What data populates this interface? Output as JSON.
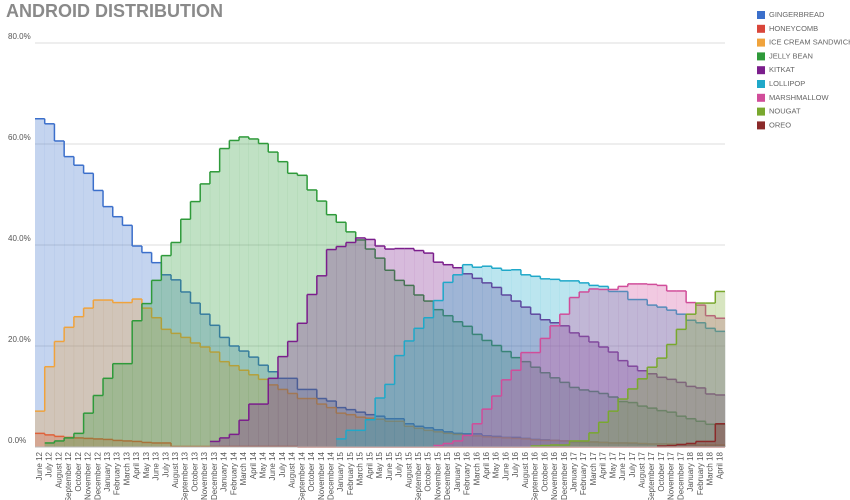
{
  "chart_data": {
    "type": "step-area",
    "title": "ANDROID DISTRIBUTION",
    "categories": [
      "June 12",
      "July 12",
      "August 12",
      "September 12",
      "October 12",
      "November 12",
      "December 12",
      "January 13",
      "February 13",
      "March 13",
      "April 13",
      "May 13",
      "June 13",
      "July 13",
      "August 13",
      "September 13",
      "October 13",
      "November 13",
      "December 13",
      "January 14",
      "February 14",
      "March 14",
      "April 14",
      "May 14",
      "June 14",
      "July 14",
      "August 14",
      "September 14",
      "October 14",
      "November 14",
      "December 14",
      "January 15",
      "February 15",
      "March 15",
      "April 15",
      "May 15",
      "June 15",
      "July 15",
      "August 15",
      "September 15",
      "October 15",
      "November 15",
      "December 15",
      "January 16",
      "February 16",
      "March 16",
      "April 16",
      "May 16",
      "June 16",
      "July 16",
      "August 16",
      "September 16",
      "October 16",
      "November 16",
      "December 16",
      "January 17",
      "February 17",
      "March 17",
      "April 17",
      "May 17",
      "June 17",
      "July 17",
      "August 17",
      "September 17",
      "October 17",
      "November 17",
      "December 17",
      "January 18",
      "February 18",
      "March 18",
      "April 18"
    ],
    "ylim": [
      0,
      80
    ],
    "yticks": [
      {
        "value": 0,
        "label": "0.0%"
      },
      {
        "value": 20,
        "label": "20.0%"
      },
      {
        "value": 40,
        "label": "40.0%"
      },
      {
        "value": 60,
        "label": "60.0%"
      },
      {
        "value": 80,
        "label": "80.0%"
      }
    ],
    "grid": true,
    "legend": "right",
    "series": [
      {
        "name": "GINGERBREAD",
        "color": "#3b6fcb",
        "values": [
          65,
          64,
          60.6,
          57.5,
          55.8,
          54.2,
          50.8,
          47.6,
          45.6,
          43.9,
          39.8,
          38.5,
          36.5,
          34.1,
          33.1,
          30.7,
          28.5,
          26.3,
          24.1,
          21.7,
          20.0,
          19.0,
          17.8,
          16.2,
          14.9,
          13.6,
          13.6,
          11.4,
          11.4,
          9.6,
          9.1,
          7.8,
          7.4,
          6.9,
          6.4,
          6.1,
          5.6,
          5.6,
          4.6,
          4.1,
          3.8,
          3.4,
          3.0,
          2.7,
          2.6,
          2.6,
          2.2,
          2.1,
          1.9,
          1.9,
          1.7,
          1.5,
          1.4,
          1.3,
          1.2,
          1.0,
          1.0,
          1.0,
          0.9,
          0.8,
          0.8,
          0.7,
          0.6,
          0.6,
          0.6,
          0.5,
          0.4,
          0.4,
          0.3,
          0.3,
          0.3
        ]
      },
      {
        "name": "HONEYCOMB",
        "color": "#d9463a",
        "values": [
          2.7,
          2.4,
          2.1,
          1.9,
          1.8,
          1.7,
          1.6,
          1.5,
          1.3,
          1.2,
          1.1,
          0.9,
          0.8,
          0.8,
          0.1,
          0.1,
          0.1,
          0.1,
          0.1,
          0.1,
          0.1,
          0.1,
          0.1,
          0.1,
          0.1,
          0.1,
          0.1,
          0,
          0,
          0,
          0,
          0,
          0,
          0,
          0,
          0,
          0,
          0,
          0,
          0,
          0,
          0,
          0,
          0,
          0,
          0,
          0,
          0,
          0,
          0,
          0,
          0,
          0,
          0,
          0,
          0,
          0,
          0,
          0,
          0,
          0,
          0,
          0,
          0,
          0,
          0,
          0,
          0,
          0,
          0,
          0
        ]
      },
      {
        "name": "ICE CREAM SANDWICH",
        "color": "#f0a33c",
        "values": [
          7.1,
          15.9,
          20.9,
          23.7,
          25.8,
          27.5,
          29.1,
          29.1,
          28.6,
          28.6,
          29.3,
          27.5,
          25.6,
          23.3,
          22.5,
          21.7,
          20.6,
          19.8,
          18.8,
          16.9,
          16.1,
          15.2,
          14.3,
          13.4,
          12.3,
          11.4,
          10.6,
          9.6,
          9.6,
          8.5,
          7.8,
          6.7,
          6.4,
          5.9,
          5.7,
          5.5,
          5.1,
          5.1,
          4.1,
          3.7,
          3.3,
          3.0,
          2.7,
          2.5,
          2.3,
          2.2,
          2.0,
          1.9,
          1.8,
          1.7,
          1.6,
          1.4,
          1.3,
          1.3,
          1.2,
          1.1,
          1.1,
          1.0,
          0.9,
          0.8,
          0.8,
          0.8,
          0.7,
          0.6,
          0.6,
          0.6,
          0.5,
          0.5,
          0.4,
          0.4,
          0.4
        ]
      },
      {
        "name": "JELLY BEAN",
        "color": "#2e9a3a",
        "values": [
          null,
          0.8,
          1.2,
          1.8,
          2.7,
          6.7,
          10.2,
          13.6,
          16.5,
          16.5,
          25.0,
          28.4,
          33.0,
          37.9,
          40.5,
          45.1,
          48.6,
          52.1,
          54.5,
          59.1,
          60.7,
          61.4,
          61.0,
          60.1,
          58.4,
          56.5,
          54.2,
          53.8,
          50.9,
          48.7,
          46.0,
          44.5,
          42.6,
          41.0,
          39.2,
          37.4,
          35.0,
          33.0,
          32.0,
          30.1,
          28.9,
          27.2,
          26.0,
          24.8,
          23.9,
          22.3,
          21.1,
          20.1,
          18.9,
          17.7,
          16.9,
          15.8,
          14.7,
          13.7,
          12.8,
          11.8,
          11.3,
          11.0,
          10.6,
          9.9,
          9.0,
          8.8,
          8.1,
          7.7,
          7.2,
          6.9,
          6.1,
          5.6,
          5.1,
          4.5,
          4.5
        ]
      },
      {
        "name": "KITKAT",
        "color": "#7b1e8c",
        "values": [
          null,
          null,
          null,
          null,
          null,
          null,
          null,
          null,
          null,
          null,
          null,
          null,
          null,
          null,
          null,
          null,
          null,
          null,
          1.1,
          1.8,
          2.5,
          5.3,
          8.5,
          8.5,
          13.6,
          17.9,
          20.9,
          24.5,
          30.2,
          33.9,
          39.1,
          39.7,
          40.5,
          41.4,
          41.1,
          39.8,
          39.2,
          39.3,
          39.3,
          38.9,
          38.4,
          36.6,
          36.1,
          35.5,
          34.3,
          33.4,
          32.5,
          31.6,
          30.1,
          28.9,
          27.7,
          26.3,
          25.2,
          24.6,
          24.0,
          22.6,
          21.9,
          20.8,
          19.8,
          18.8,
          17.1,
          16.0,
          15.1,
          14.5,
          13.8,
          13.4,
          12.8,
          12.0,
          11.7,
          10.5,
          10.3
        ]
      },
      {
        "name": "LOLLIPOP",
        "color": "#1fa8c9",
        "values": [
          null,
          null,
          null,
          null,
          null,
          null,
          null,
          null,
          null,
          null,
          null,
          null,
          null,
          null,
          null,
          null,
          null,
          null,
          null,
          null,
          null,
          null,
          null,
          null,
          null,
          null,
          null,
          null,
          null,
          null,
          null,
          1.6,
          3.3,
          3.3,
          5.4,
          9.7,
          12.4,
          18.1,
          21.0,
          23.5,
          25.6,
          29.0,
          32.6,
          34.1,
          36.1,
          35.6,
          35.8,
          35.4,
          35.0,
          35.1,
          34.1,
          33.8,
          33.3,
          33.2,
          32.9,
          32.9,
          32.5,
          32.0,
          31.8,
          30.8,
          30.8,
          29.2,
          29.2,
          28.1,
          27.7,
          27.1,
          26.3,
          25.1,
          24.6,
          23.5,
          22.9
        ]
      },
      {
        "name": "MARSHMALLOW",
        "color": "#d14d9a",
        "values": [
          null,
          null,
          null,
          null,
          null,
          null,
          null,
          null,
          null,
          null,
          null,
          null,
          null,
          null,
          null,
          null,
          null,
          null,
          null,
          null,
          null,
          null,
          null,
          null,
          null,
          null,
          null,
          null,
          null,
          null,
          null,
          null,
          null,
          null,
          null,
          null,
          null,
          null,
          null,
          null,
          null,
          0.3,
          0.7,
          1.2,
          2.3,
          4.6,
          7.5,
          10.1,
          13.3,
          15.2,
          18.7,
          18.7,
          21.5,
          24.0,
          26.3,
          29.6,
          30.7,
          31.3,
          31.2,
          31.2,
          31.8,
          32.3,
          32.3,
          32.2,
          32.0,
          30.9,
          30.9,
          28.6,
          28.1,
          26.0,
          25.5
        ]
      },
      {
        "name": "NOUGAT",
        "color": "#79a82e",
        "values": [
          null,
          null,
          null,
          null,
          null,
          null,
          null,
          null,
          null,
          null,
          null,
          null,
          null,
          null,
          null,
          null,
          null,
          null,
          null,
          null,
          null,
          null,
          null,
          null,
          null,
          null,
          null,
          null,
          null,
          null,
          null,
          null,
          null,
          null,
          null,
          null,
          null,
          null,
          null,
          null,
          null,
          null,
          null,
          null,
          null,
          null,
          null,
          null,
          null,
          null,
          null,
          0.2,
          0.3,
          0.4,
          0.4,
          1.2,
          1.2,
          2.8,
          4.9,
          7.1,
          9.5,
          11.5,
          13.5,
          15.8,
          17.6,
          20.3,
          23.3,
          26.3,
          28.5,
          28.5,
          30.8
        ]
      },
      {
        "name": "OREO",
        "color": "#8b2a2a",
        "values": [
          null,
          null,
          null,
          null,
          null,
          null,
          null,
          null,
          null,
          null,
          null,
          null,
          null,
          null,
          null,
          null,
          null,
          null,
          null,
          null,
          null,
          null,
          null,
          null,
          null,
          null,
          null,
          null,
          null,
          null,
          null,
          null,
          null,
          null,
          null,
          null,
          null,
          null,
          null,
          null,
          null,
          null,
          null,
          null,
          null,
          null,
          null,
          null,
          null,
          null,
          null,
          null,
          null,
          null,
          null,
          null,
          null,
          null,
          null,
          null,
          null,
          null,
          null,
          null,
          0.2,
          0.3,
          0.5,
          0.7,
          1.1,
          1.1,
          4.6
        ]
      }
    ]
  }
}
